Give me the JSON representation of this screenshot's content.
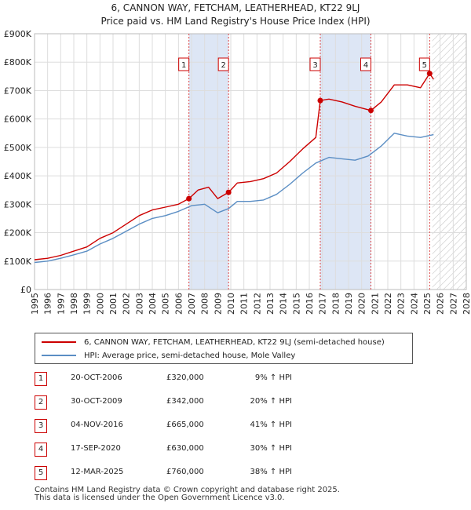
{
  "chart_data": {
    "type": "line",
    "title": "6, CANNON WAY, FETCHAM, LEATHERHEAD, KT22 9LJ",
    "subtitle": "Price paid vs. HM Land Registry's House Price Index (HPI)",
    "xlim": [
      1995,
      2028
    ],
    "ylim": [
      0,
      900000
    ],
    "x_ticks": [
      "1995",
      "1996",
      "1997",
      "1998",
      "1999",
      "2000",
      "2001",
      "2002",
      "2003",
      "2004",
      "2005",
      "2006",
      "2007",
      "2008",
      "2009",
      "2010",
      "2011",
      "2012",
      "2013",
      "2014",
      "2015",
      "2016",
      "2017",
      "2018",
      "2019",
      "2020",
      "2021",
      "2022",
      "2023",
      "2024",
      "2025",
      "2026",
      "2027",
      "2028"
    ],
    "y_ticks": [
      {
        "value": 0,
        "label": "£0"
      },
      {
        "value": 100000,
        "label": "£100K"
      },
      {
        "value": 200000,
        "label": "£200K"
      },
      {
        "value": 300000,
        "label": "£300K"
      },
      {
        "value": 400000,
        "label": "£400K"
      },
      {
        "value": 500000,
        "label": "£500K"
      },
      {
        "value": 600000,
        "label": "£600K"
      },
      {
        "value": 700000,
        "label": "£700K"
      },
      {
        "value": 800000,
        "label": "£800K"
      },
      {
        "value": 900000,
        "label": "£900K"
      }
    ],
    "shaded_ranges": [
      [
        2006.8,
        2009.83
      ],
      [
        2016.84,
        2020.71
      ]
    ],
    "future_hatch_start": 2025.4,
    "series": [
      {
        "name": "6, CANNON WAY, FETCHAM, LEATHERHEAD, KT22 9LJ (semi-detached house)",
        "color": "#cc0000",
        "points": [
          [
            1995.0,
            105000
          ],
          [
            1996.0,
            110000
          ],
          [
            1997.0,
            120000
          ],
          [
            1998.0,
            135000
          ],
          [
            1999.0,
            150000
          ],
          [
            2000.0,
            180000
          ],
          [
            2001.0,
            200000
          ],
          [
            2002.0,
            230000
          ],
          [
            2003.0,
            260000
          ],
          [
            2004.0,
            280000
          ],
          [
            2005.0,
            290000
          ],
          [
            2006.0,
            300000
          ],
          [
            2006.8,
            320000
          ],
          [
            2007.5,
            350000
          ],
          [
            2008.3,
            360000
          ],
          [
            2009.0,
            320000
          ],
          [
            2009.83,
            342000
          ],
          [
            2010.5,
            375000
          ],
          [
            2011.5,
            380000
          ],
          [
            2012.5,
            390000
          ],
          [
            2013.5,
            410000
          ],
          [
            2014.5,
            450000
          ],
          [
            2015.5,
            495000
          ],
          [
            2016.5,
            535000
          ],
          [
            2016.84,
            665000
          ],
          [
            2017.5,
            670000
          ],
          [
            2018.5,
            660000
          ],
          [
            2019.5,
            645000
          ],
          [
            2020.71,
            630000
          ],
          [
            2021.5,
            660000
          ],
          [
            2022.5,
            720000
          ],
          [
            2023.5,
            720000
          ],
          [
            2024.5,
            710000
          ],
          [
            2025.2,
            760000
          ],
          [
            2025.5,
            740000
          ]
        ]
      },
      {
        "name": "HPI: Average price, semi-detached house, Mole Valley",
        "color": "#5b8ec4",
        "points": [
          [
            1995.0,
            95000
          ],
          [
            1996.0,
            100000
          ],
          [
            1997.0,
            110000
          ],
          [
            1998.0,
            122000
          ],
          [
            1999.0,
            135000
          ],
          [
            2000.0,
            160000
          ],
          [
            2001.0,
            180000
          ],
          [
            2002.0,
            205000
          ],
          [
            2003.0,
            230000
          ],
          [
            2004.0,
            250000
          ],
          [
            2005.0,
            260000
          ],
          [
            2006.0,
            275000
          ],
          [
            2007.0,
            295000
          ],
          [
            2008.0,
            300000
          ],
          [
            2009.0,
            270000
          ],
          [
            2009.83,
            285000
          ],
          [
            2010.5,
            310000
          ],
          [
            2011.5,
            310000
          ],
          [
            2012.5,
            315000
          ],
          [
            2013.5,
            335000
          ],
          [
            2014.5,
            370000
          ],
          [
            2015.5,
            410000
          ],
          [
            2016.5,
            445000
          ],
          [
            2017.5,
            465000
          ],
          [
            2018.5,
            460000
          ],
          [
            2019.5,
            455000
          ],
          [
            2020.5,
            470000
          ],
          [
            2021.5,
            505000
          ],
          [
            2022.5,
            550000
          ],
          [
            2023.5,
            540000
          ],
          [
            2024.5,
            535000
          ],
          [
            2025.5,
            545000
          ]
        ]
      }
    ],
    "sales": [
      {
        "num": "1",
        "year": 2006.8,
        "value": 320000
      },
      {
        "num": "2",
        "year": 2009.83,
        "value": 342000
      },
      {
        "num": "3",
        "year": 2016.84,
        "value": 665000
      },
      {
        "num": "4",
        "year": 2020.71,
        "value": 630000
      },
      {
        "num": "5",
        "year": 2025.2,
        "value": 760000
      }
    ]
  },
  "header": {
    "title": "6, CANNON WAY, FETCHAM, LEATHERHEAD, KT22 9LJ",
    "subtitle": "Price paid vs. HM Land Registry's House Price Index (HPI)"
  },
  "legend": {
    "red_label": "6, CANNON WAY, FETCHAM, LEATHERHEAD, KT22 9LJ (semi-detached house)",
    "blue_label": "HPI: Average price, semi-detached house, Mole Valley",
    "red_color": "#cc0000",
    "blue_color": "#5b8ec4"
  },
  "transactions": [
    {
      "num": "1",
      "date": "20-OCT-2006",
      "price": "£320,000",
      "hpi": "9% ↑ HPI"
    },
    {
      "num": "2",
      "date": "30-OCT-2009",
      "price": "£342,000",
      "hpi": "20% ↑ HPI"
    },
    {
      "num": "3",
      "date": "04-NOV-2016",
      "price": "£665,000",
      "hpi": "41% ↑ HPI"
    },
    {
      "num": "4",
      "date": "17-SEP-2020",
      "price": "£630,000",
      "hpi": "30% ↑ HPI"
    },
    {
      "num": "5",
      "date": "12-MAR-2025",
      "price": "£760,000",
      "hpi": "38% ↑ HPI"
    }
  ],
  "footer": {
    "line1": "Contains HM Land Registry data © Crown copyright and database right 2025.",
    "line2": "This data is licensed under the Open Government Licence v3.0."
  }
}
